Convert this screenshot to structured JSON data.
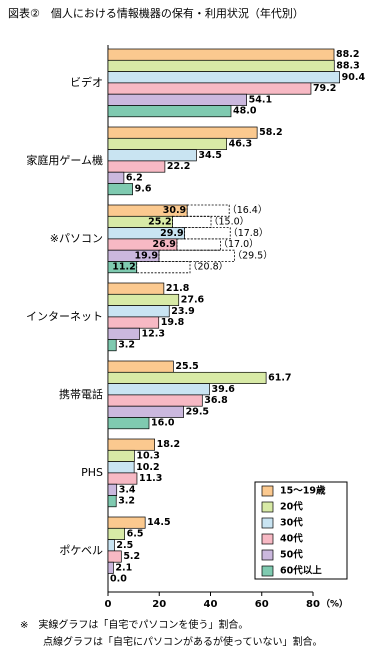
{
  "chart_data": {
    "type": "hbar",
    "title": "図表②　個人における情報機器の保有・利用状況（年代別）",
    "categories": [
      "ビデオ",
      "家庭用ゲーム機",
      "※パソコン",
      "インターネット",
      "携帯電話",
      "PHS",
      "ポケベル"
    ],
    "series": [
      {
        "name": "15〜19歳",
        "color": "#fbc98f",
        "values": [
          88.2,
          58.2,
          30.9,
          21.8,
          25.5,
          18.2,
          14.5
        ],
        "value_labels": [
          "88.2",
          "58.2",
          "30.9",
          "21.8",
          "25.5",
          "18.2",
          "14.5"
        ],
        "dotted_values": [
          null,
          null,
          16.4,
          null,
          null,
          null,
          null
        ],
        "dotted_value_labels": [
          null,
          null,
          "（16.4）",
          null,
          null,
          null,
          null
        ]
      },
      {
        "name": "20代",
        "color": "#d8eaa6",
        "values": [
          88.3,
          46.3,
          25.2,
          27.6,
          61.7,
          10.3,
          6.5
        ],
        "value_labels": [
          "88.3",
          "46.3",
          "25.2",
          "27.6",
          "61.7",
          "10.3",
          "6.5"
        ],
        "dotted_values": [
          null,
          null,
          15.0,
          null,
          null,
          null,
          null
        ],
        "dotted_value_labels": [
          null,
          null,
          "（15.0）",
          null,
          null,
          null,
          null
        ]
      },
      {
        "name": "30代",
        "color": "#c9e4f2",
        "values": [
          90.4,
          34.5,
          29.9,
          23.9,
          39.6,
          10.2,
          2.5
        ],
        "value_labels": [
          "90.4",
          "34.5",
          "29.9",
          "23.9",
          "39.6",
          "10.2",
          "2.5"
        ],
        "dotted_values": [
          null,
          null,
          17.8,
          null,
          null,
          null,
          null
        ],
        "dotted_value_labels": [
          null,
          null,
          "（17.8）",
          null,
          null,
          null,
          null
        ]
      },
      {
        "name": "40代",
        "color": "#f7b9c4",
        "values": [
          79.2,
          22.2,
          26.9,
          19.8,
          36.8,
          11.3,
          5.2
        ],
        "value_labels": [
          "79.2",
          "22.2",
          "26.9",
          "19.8",
          "36.8",
          "11.3",
          "5.2"
        ],
        "dotted_values": [
          null,
          null,
          17.0,
          null,
          null,
          null,
          null
        ],
        "dotted_value_labels": [
          null,
          null,
          "（17.0）",
          null,
          null,
          null,
          null
        ]
      },
      {
        "name": "50代",
        "color": "#cbb8de",
        "values": [
          54.1,
          6.2,
          19.9,
          12.3,
          29.5,
          3.4,
          2.1
        ],
        "value_labels": [
          "54.1",
          "6.2",
          "19.9",
          "12.3",
          "29.5",
          "3.4",
          "2.1"
        ],
        "dotted_values": [
          null,
          null,
          29.5,
          null,
          null,
          null,
          null
        ],
        "dotted_value_labels": [
          null,
          null,
          "（29.5）",
          null,
          null,
          null,
          null
        ]
      },
      {
        "name": "60代以上",
        "color": "#7fcab0",
        "values": [
          48.0,
          9.6,
          11.2,
          3.2,
          16.0,
          3.2,
          0.0
        ],
        "value_labels": [
          "48.0",
          "9.6",
          "11.2",
          "3.2",
          "16.0",
          "3.2",
          "0.0"
        ],
        "dotted_values": [
          null,
          null,
          20.8,
          null,
          null,
          null,
          null
        ],
        "dotted_value_labels": [
          null,
          null,
          "（20.8）",
          null,
          null,
          null,
          null
        ]
      }
    ],
    "xlim": [
      0,
      80
    ],
    "xticks": [
      0,
      20,
      40,
      60,
      80
    ],
    "xlabel": "（%）",
    "notes": [
      "※　実線グラフは「自宅でパソコンを使う」割合。",
      "点線グラフは「自宅にパソコンがあるが使っていない」割合。"
    ]
  }
}
